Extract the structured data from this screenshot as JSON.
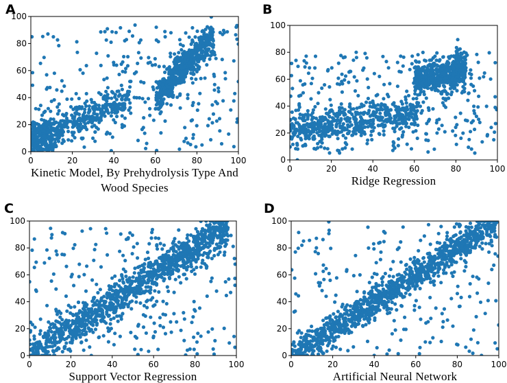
{
  "chart_data": [
    {
      "panel": "A",
      "type": "scatter",
      "title": "",
      "xlabel": [
        "Kinetic Model, By Prehydrolysis Type And",
        "Wood Species"
      ],
      "ylabel": "",
      "xlim": [
        0,
        100
      ],
      "ylim": [
        0,
        100
      ],
      "xticks": [
        0,
        20,
        40,
        60,
        80,
        100
      ],
      "yticks": [
        0,
        20,
        40,
        60,
        80,
        100
      ],
      "color": "#1f77b4",
      "pattern": "kinetic",
      "n_points": 1400
    },
    {
      "panel": "B",
      "type": "scatter",
      "title": "",
      "xlabel": [
        "Ridge Regression"
      ],
      "ylabel": "",
      "xlim": [
        0,
        100
      ],
      "ylim": [
        0,
        100
      ],
      "xticks": [
        0,
        20,
        40,
        60,
        80,
        100
      ],
      "yticks": [
        0,
        20,
        40,
        60,
        80,
        100
      ],
      "color": "#1f77b4",
      "pattern": "ridge",
      "n_points": 1400
    },
    {
      "panel": "C",
      "type": "scatter",
      "title": "",
      "xlabel": [
        "Support Vector Regression"
      ],
      "ylabel": "",
      "xlim": [
        0,
        100
      ],
      "ylim": [
        0,
        100
      ],
      "xticks": [
        0,
        20,
        40,
        60,
        80,
        100
      ],
      "yticks": [
        0,
        20,
        40,
        60,
        80,
        100
      ],
      "color": "#1f77b4",
      "pattern": "svr",
      "n_points": 1400
    },
    {
      "panel": "D",
      "type": "scatter",
      "title": "",
      "xlabel": [
        "Artificial Neural Network"
      ],
      "ylabel": "",
      "xlim": [
        0,
        100
      ],
      "ylim": [
        0,
        100
      ],
      "xticks": [
        0,
        20,
        40,
        60,
        80,
        100
      ],
      "yticks": [
        0,
        20,
        40,
        60,
        80,
        100
      ],
      "color": "#1f77b4",
      "pattern": "ann",
      "n_points": 1400
    }
  ]
}
